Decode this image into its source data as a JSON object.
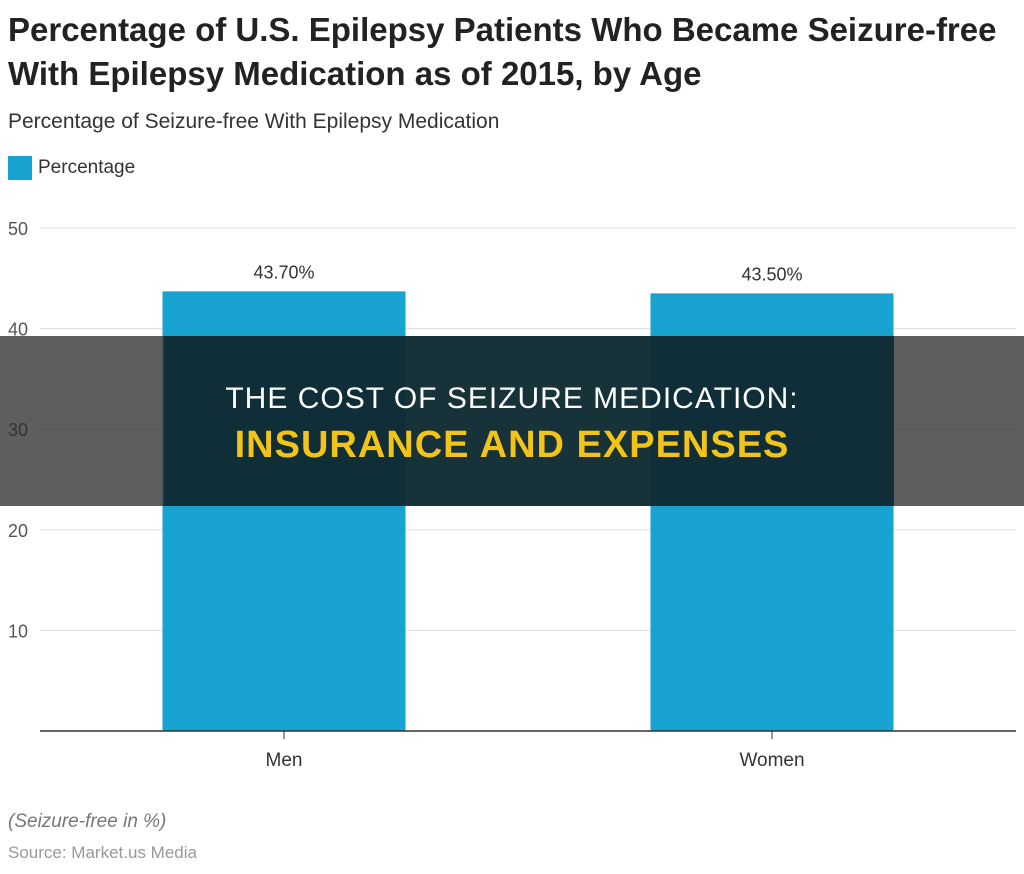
{
  "chart_data": {
    "type": "bar",
    "title": "Percentage of U.S. Epilepsy Patients Who Became Seizure-free With Epilepsy Medication as of 2015, by Age",
    "subtitle": "Percentage of Seizure-free With Epilepsy Medication",
    "categories": [
      "Men",
      "Women"
    ],
    "series": [
      {
        "name": "Percentage",
        "values": [
          43.7,
          43.5
        ],
        "labels": [
          "43.70%",
          "43.50%"
        ],
        "color": "#17a2d0"
      }
    ],
    "ylim": [
      0,
      50
    ],
    "yticks": [
      "10",
      "20",
      "30",
      "40",
      "50"
    ],
    "ytick_values": [
      10,
      20,
      30,
      40,
      50
    ],
    "grid": true,
    "legend": "top-left",
    "note": "(Seizure-free in %)",
    "source": "Source: Market.us Media"
  },
  "banner": {
    "line1": "THE COST OF SEIZURE MEDICATION:",
    "line2": "INSURANCE AND EXPENSES"
  }
}
